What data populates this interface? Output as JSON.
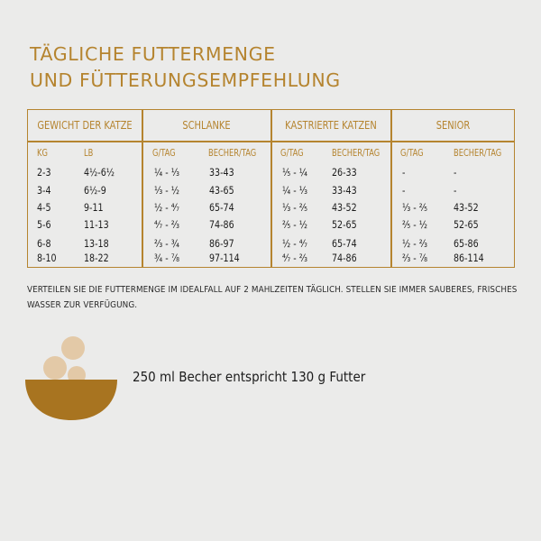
{
  "title": {
    "line1": "TÄGLICHE FUTTERMENGE",
    "line2": "UND FÜTTERUNGSEMPFEHLUNG"
  },
  "table": {
    "groups": [
      "GEWICHT DER KATZE",
      "SCHLANKE",
      "KASTRIERTE KATZEN",
      "SENIOR"
    ],
    "subheaders": [
      "KG",
      "LB",
      "G/TAG",
      "BECHER/TAG",
      "G/TAG",
      "BECHER/TAG",
      "G/TAG",
      "BECHER/TAG"
    ],
    "rows": [
      [
        "2-3",
        "4½-6½",
        "¼ - ⅓",
        "33-43",
        "⅕ - ¼",
        "26-33",
        "-",
        "-"
      ],
      [
        "3-4",
        "6½-9",
        "⅓ - ½",
        "43-65",
        "¼ - ⅓",
        "33-43",
        "-",
        "-"
      ],
      [
        "4-5",
        "9-11",
        "½ - ⁴⁄₇",
        "65-74",
        "⅓ - ⅖",
        "43-52",
        "⅓ - ⅖",
        "43-52"
      ],
      [
        "5-6",
        "11-13",
        "⁴⁄₇ - ⅔",
        "74-86",
        "⅖ - ½",
        "52-65",
        "⅖ - ½",
        "52-65"
      ],
      [
        "6-8",
        "13-18",
        "⅔ - ¾",
        "86-97",
        "½ - ⁴⁄₇",
        "65-74",
        "½ - ⅔",
        "65-86"
      ],
      [
        "8-10",
        "18-22",
        "¾ - ⅞",
        "97-114",
        "⁴⁄₇ - ⅔",
        "74-86",
        "⅔ - ⅞",
        "86-114"
      ]
    ]
  },
  "note": "VERTEILEN SIE DIE FUTTERMENGE IM IDEALFALL AUF 2 MAHLZEITEN TÄGLICH. STELLEN SIE IMMER SAUBERES, FRISCHES WASSER ZUR VERFÜGUNG.",
  "portion_text": "250 ml Becher entspricht 130 g Futter",
  "colors": {
    "accent": "#b5842f",
    "bowl": "#a87420",
    "kibble": "#e3c9a7",
    "background": "#ebebea"
  },
  "icons": [
    "bowl-icon"
  ]
}
